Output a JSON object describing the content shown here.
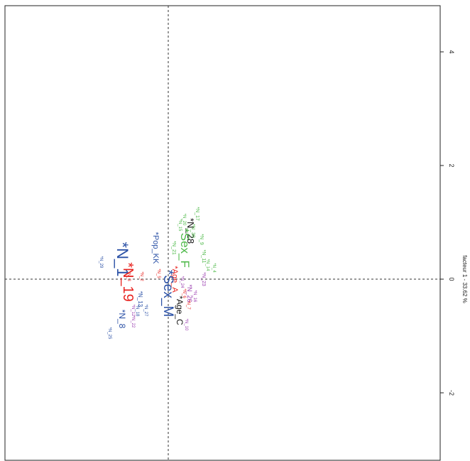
{
  "chart_data": {
    "type": "scatter",
    "title": "",
    "xlabel": "",
    "ylabel": "facteur 1 - 33.62 %",
    "orientation": "rotated-90",
    "xlim": [
      -2.7,
      4.6
    ],
    "ylim": [
      -3.05,
      4.7
    ],
    "axis_ticks": [
      -2,
      0,
      2,
      4
    ],
    "tick_labels": [
      "-2",
      "0",
      "2",
      "4"
    ],
    "grid": false,
    "legend": "none",
    "reference_lines": {
      "x": 0,
      "y": 0
    },
    "colors": {
      "black": "#111111",
      "red": "#e8231f",
      "green": "#4cb847",
      "blue": "#2b51a6",
      "purple": "#9b3fb0"
    },
    "points": [
      {
        "label": "*N_28",
        "x": 0.45,
        "y": 0.85,
        "color": "black",
        "size": 13
      },
      {
        "label": "*Sex_F",
        "x": 0.3,
        "y": 0.55,
        "color": "green",
        "size": 17
      },
      {
        "label": "*Age_A",
        "x": 0.1,
        "y": 0.0,
        "color": "red",
        "size": 11
      },
      {
        "label": "*Sex_M",
        "x": -0.1,
        "y": -0.25,
        "color": "blue",
        "size": 19
      },
      {
        "label": "*Age_C",
        "x": 0.2,
        "y": -0.55,
        "color": "black",
        "size": 12
      },
      {
        "label": "*N_1",
        "x": -1.2,
        "y": 0.35,
        "color": "blue",
        "size": 22
      },
      {
        "label": "*N_19",
        "x": -1.05,
        "y": -0.05,
        "color": "red",
        "size": 20
      },
      {
        "label": "*Pop_KK",
        "x": -0.35,
        "y": 0.55,
        "color": "blue",
        "size": 11
      },
      {
        "label": "*N_8",
        "x": -1.15,
        "y": -0.7,
        "color": "blue",
        "size": 12
      },
      {
        "label": "*N_26",
        "x": 0.45,
        "y": -0.25,
        "color": "purple",
        "size": 9
      },
      {
        "label": "*N_13",
        "x": -0.7,
        "y": -0.35,
        "color": "blue",
        "size": 8
      },
      {
        "label": "*N_21",
        "x": 0.1,
        "y": 0.55,
        "color": "green",
        "size": 7
      },
      {
        "label": "*N_17",
        "x": 0.65,
        "y": 1.15,
        "color": "green",
        "size": 7
      },
      {
        "label": "*N_30",
        "x": 0.55,
        "y": 0.85,
        "color": "green",
        "size": 7
      },
      {
        "label": "*N_9",
        "x": 0.75,
        "y": 0.7,
        "color": "green",
        "size": 7
      },
      {
        "label": "*N_11",
        "x": 0.8,
        "y": 0.4,
        "color": "green",
        "size": 7
      },
      {
        "label": "*N_14",
        "x": 0.9,
        "y": 0.25,
        "color": "green",
        "size": 6
      },
      {
        "label": "*N_4",
        "x": 1.05,
        "y": 0.2,
        "color": "green",
        "size": 6
      },
      {
        "label": "*N_23",
        "x": 0.8,
        "y": 0.0,
        "color": "purple",
        "size": 7
      },
      {
        "label": "*N_16",
        "x": 0.6,
        "y": -0.3,
        "color": "purple",
        "size": 6
      },
      {
        "label": "*N_7",
        "x": 0.45,
        "y": -0.45,
        "color": "red",
        "size": 6
      },
      {
        "label": "*N_10",
        "x": 0.4,
        "y": -0.8,
        "color": "purple",
        "size": 6
      },
      {
        "label": "*N_6",
        "x": 0.35,
        "y": -0.25,
        "color": "red",
        "size": 6
      },
      {
        "label": "*N_24",
        "x": 0.3,
        "y": -0.05,
        "color": "purple",
        "size": 6
      },
      {
        "label": "*N_5",
        "x": -0.25,
        "y": 0.1,
        "color": "red",
        "size": 6
      },
      {
        "label": "*N_2",
        "x": -0.65,
        "y": 0.05,
        "color": "red",
        "size": 6
      },
      {
        "label": "*N_3",
        "x": -0.95,
        "y": 0.05,
        "color": "red",
        "size": 6
      },
      {
        "label": "*N_12",
        "x": -0.85,
        "y": -0.55,
        "color": "purple",
        "size": 6
      },
      {
        "label": "*N_27",
        "x": -0.55,
        "y": -0.55,
        "color": "blue",
        "size": 6
      },
      {
        "label": "*N_18",
        "x": -0.75,
        "y": -0.55,
        "color": "blue",
        "size": 6
      },
      {
        "label": "*N_22",
        "x": -0.85,
        "y": -0.75,
        "color": "purple",
        "size": 6
      },
      {
        "label": "*N_25",
        "x": -1.4,
        "y": -0.95,
        "color": "blue",
        "size": 6
      },
      {
        "label": "*N_15",
        "x": 0.25,
        "y": 0.95,
        "color": "green",
        "size": 6
      },
      {
        "label": "*N_20",
        "x": 0.35,
        "y": 1.05,
        "color": "green",
        "size": 6
      },
      {
        "label": "*N_29",
        "x": -1.6,
        "y": 0.3,
        "color": "blue",
        "size": 6
      }
    ]
  }
}
